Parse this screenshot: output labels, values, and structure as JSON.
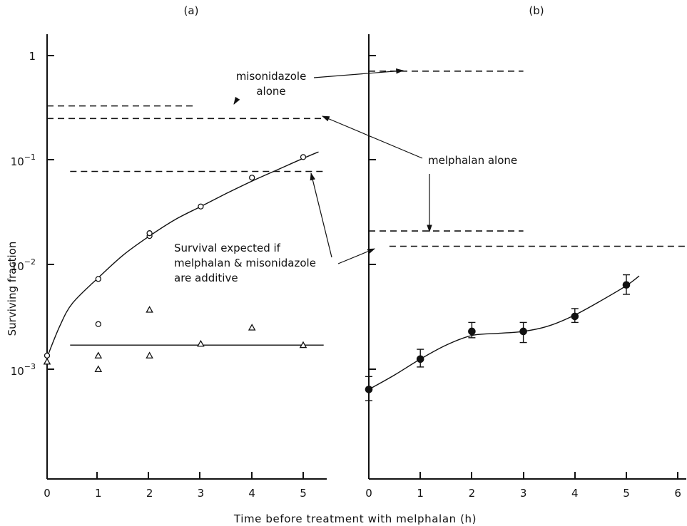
{
  "chart_data": [
    {
      "type": "scatter",
      "panel_label": "(a)",
      "ylabel": "Surviving fraction",
      "xlim": [
        0,
        5.4
      ],
      "ylim_log10": [
        -4,
        0.2
      ],
      "yscale": "log",
      "x_ticks": [
        "0",
        "1",
        "2",
        "3",
        "4",
        "5"
      ],
      "y_tick_labels": [
        {
          "value": 1,
          "base": "1",
          "exp": ""
        },
        {
          "value": 0.1,
          "base": "10",
          "exp": "−1"
        },
        {
          "value": 0.01,
          "base": "10",
          "exp": "−2"
        },
        {
          "value": 0.001,
          "base": "10",
          "exp": "−3"
        }
      ],
      "series": [
        {
          "marker": "open-circle",
          "x": [
            0,
            1,
            1,
            2,
            2,
            3,
            4,
            5
          ],
          "y": [
            0.00135,
            0.0073,
            0.0027,
            0.0188,
            0.02,
            0.036,
            0.068,
            0.107
          ]
        },
        {
          "marker": "open-triangle",
          "x": [
            0,
            1,
            1,
            2,
            2,
            3,
            4,
            5
          ],
          "y": [
            0.00118,
            0.00135,
            0.001,
            0.0037,
            0.00135,
            0.00175,
            0.0025,
            0.0017
          ]
        }
      ],
      "fit_curves": [
        {
          "x": [
            0,
            0.25,
            0.5,
            1,
            1.5,
            2,
            2.5,
            3,
            3.5,
            4,
            4.5,
            5,
            5.3
          ],
          "y": [
            0.0013,
            0.0026,
            0.0043,
            0.0075,
            0.0125,
            0.0188,
            0.027,
            0.036,
            0.048,
            0.063,
            0.081,
            0.104,
            0.12
          ]
        },
        {
          "x": [
            0.45,
            5.4
          ],
          "y": [
            0.0017,
            0.0017
          ]
        }
      ],
      "reference_lines": [
        {
          "y": 0.33,
          "x": [
            0,
            2.9
          ]
        },
        {
          "y": 0.25,
          "x": [
            0,
            5.4
          ]
        },
        {
          "y": 0.078,
          "x": [
            0.45,
            5.4
          ]
        }
      ],
      "annotations": {
        "misonidazole_alone": [
          "misonidazole",
          "alone"
        ],
        "melphalan_alone": "melphalan alone",
        "survival_expected": [
          "Survival expected if",
          "melphalan & misonidazole",
          "are additive"
        ]
      }
    },
    {
      "type": "scatter",
      "panel_label": "(b)",
      "xlim": [
        0,
        6.2
      ],
      "ylim_log10": [
        -4,
        0.2
      ],
      "yscale": "log",
      "x_ticks": [
        "0",
        "1",
        "2",
        "3",
        "4",
        "5",
        "6"
      ],
      "series": [
        {
          "marker": "filled-circle",
          "x": [
            0,
            1,
            2,
            3,
            4,
            5
          ],
          "y": [
            0.00064,
            0.00125,
            0.0023,
            0.0023,
            0.0032,
            0.0064
          ],
          "err_low": [
            0.0005,
            0.00105,
            0.002,
            0.0018,
            0.0028,
            0.0052
          ],
          "err_high": [
            0.00085,
            0.00155,
            0.0028,
            0.0028,
            0.0038,
            0.008
          ]
        }
      ],
      "fit_curves": [
        {
          "x": [
            0,
            0.5,
            1,
            1.5,
            2,
            2.5,
            3,
            3.5,
            4,
            4.5,
            5,
            5.25
          ],
          "y": [
            0.00064,
            0.00088,
            0.00125,
            0.0017,
            0.0021,
            0.0022,
            0.0023,
            0.0026,
            0.0033,
            0.0045,
            0.0063,
            0.0078
          ]
        }
      ],
      "reference_lines": [
        {
          "y": 0.71,
          "x": [
            0,
            3
          ]
        },
        {
          "y": 0.021,
          "x": [
            0,
            3
          ]
        },
        {
          "y": 0.015,
          "x": [
            0.4,
            6.2
          ]
        }
      ]
    }
  ],
  "shared_xlabel": "Time before treatment with melphalan (h)"
}
